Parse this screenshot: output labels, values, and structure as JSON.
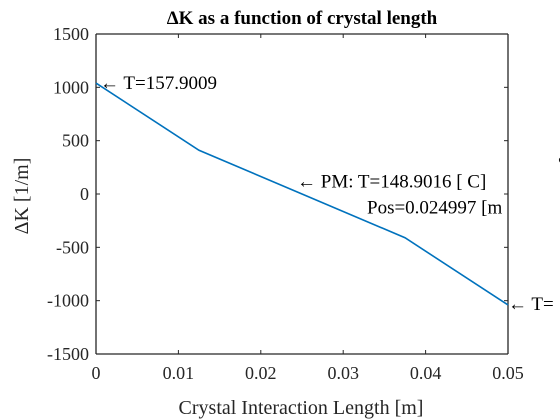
{
  "chart_data": {
    "type": "line",
    "title": "ΔK as a function of crystal length",
    "xlabel": "Crystal Interaction Length [m]",
    "ylabel": "ΔK [1/m]",
    "xlim": [
      0,
      0.05
    ],
    "ylim": [
      -1500,
      1500
    ],
    "grid": false,
    "xticks": [
      0,
      0.01,
      0.02,
      0.03,
      0.04,
      0.05
    ],
    "xtick_labels": [
      "0",
      "0.01",
      "0.02",
      "0.03",
      "0.04",
      "0.05"
    ],
    "yticks": [
      1500,
      1000,
      500,
      0,
      -500,
      -1000,
      -1500
    ],
    "ytick_labels": [
      "1500",
      "1000",
      "500",
      "0",
      "-500",
      "-1000",
      "-1500"
    ],
    "series": [
      {
        "color": "#0072BD",
        "x": [
          0,
          0.0125,
          0.025,
          0.0375,
          0.05
        ],
        "y": [
          1040,
          410,
          0,
          -410,
          -1040
        ]
      }
    ],
    "annotations": [
      {
        "lines": [
          "← T=157.9009"
        ],
        "x": 0,
        "y": 1040
      },
      {
        "lines": [
          "← PM: T=148.9016 [ C]",
          "Pos=0.024997 [m"
        ],
        "x": 0.025,
        "y": 60
      },
      {
        "lines": [
          "← T="
        ],
        "x": 0.05,
        "y": -1040
      }
    ],
    "degree_symbol": "°"
  }
}
